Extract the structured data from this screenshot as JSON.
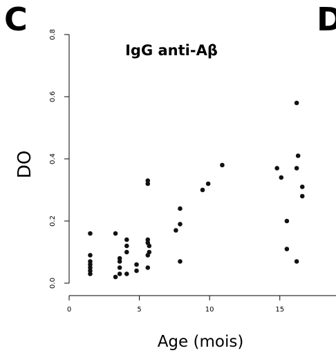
{
  "panels": {
    "left": "C",
    "right": "D"
  },
  "chart_data": {
    "type": "scatter",
    "title": "IgG anti-Aβ",
    "xlabel": "Age (mois)",
    "ylabel": "DO",
    "xlim": [
      0,
      19
    ],
    "ylim": [
      -0.04,
      0.8
    ],
    "x_ticks": [
      0,
      5,
      10,
      15
    ],
    "y_ticks": [
      0.0,
      0.2,
      0.4,
      0.6,
      0.8
    ],
    "x_tick_labels": [
      "0",
      "5",
      "10",
      "15"
    ],
    "y_tick_labels": [
      "0.0",
      "0.2",
      "0.4",
      "0.6",
      "0.8"
    ],
    "grid": false,
    "marker_color": "#111111",
    "points": [
      {
        "x": 1.5,
        "y": 0.16
      },
      {
        "x": 1.5,
        "y": 0.09
      },
      {
        "x": 1.5,
        "y": 0.07
      },
      {
        "x": 1.5,
        "y": 0.06
      },
      {
        "x": 1.5,
        "y": 0.05
      },
      {
        "x": 1.5,
        "y": 0.04
      },
      {
        "x": 1.5,
        "y": 0.03
      },
      {
        "x": 3.3,
        "y": 0.16
      },
      {
        "x": 3.3,
        "y": 0.02
      },
      {
        "x": 3.6,
        "y": 0.08
      },
      {
        "x": 3.6,
        "y": 0.07
      },
      {
        "x": 3.6,
        "y": 0.05
      },
      {
        "x": 3.6,
        "y": 0.03
      },
      {
        "x": 4.1,
        "y": 0.14
      },
      {
        "x": 4.1,
        "y": 0.12
      },
      {
        "x": 4.1,
        "y": 0.1
      },
      {
        "x": 4.1,
        "y": 0.03
      },
      {
        "x": 4.8,
        "y": 0.06
      },
      {
        "x": 4.8,
        "y": 0.04
      },
      {
        "x": 5.6,
        "y": 0.33
      },
      {
        "x": 5.6,
        "y": 0.32
      },
      {
        "x": 5.6,
        "y": 0.14
      },
      {
        "x": 5.6,
        "y": 0.13
      },
      {
        "x": 5.7,
        "y": 0.12
      },
      {
        "x": 5.7,
        "y": 0.1
      },
      {
        "x": 5.6,
        "y": 0.09
      },
      {
        "x": 5.6,
        "y": 0.05
      },
      {
        "x": 7.6,
        "y": 0.17
      },
      {
        "x": 7.9,
        "y": 0.24
      },
      {
        "x": 7.9,
        "y": 0.19
      },
      {
        "x": 7.9,
        "y": 0.07
      },
      {
        "x": 9.5,
        "y": 0.3
      },
      {
        "x": 9.9,
        "y": 0.32
      },
      {
        "x": 10.9,
        "y": 0.38
      },
      {
        "x": 14.8,
        "y": 0.37
      },
      {
        "x": 15.1,
        "y": 0.34
      },
      {
        "x": 15.5,
        "y": 0.2
      },
      {
        "x": 15.5,
        "y": 0.11
      },
      {
        "x": 16.2,
        "y": 0.58
      },
      {
        "x": 16.2,
        "y": 0.37
      },
      {
        "x": 16.3,
        "y": 0.41
      },
      {
        "x": 16.2,
        "y": 0.07
      },
      {
        "x": 16.6,
        "y": 0.31
      },
      {
        "x": 16.6,
        "y": 0.28
      }
    ]
  }
}
